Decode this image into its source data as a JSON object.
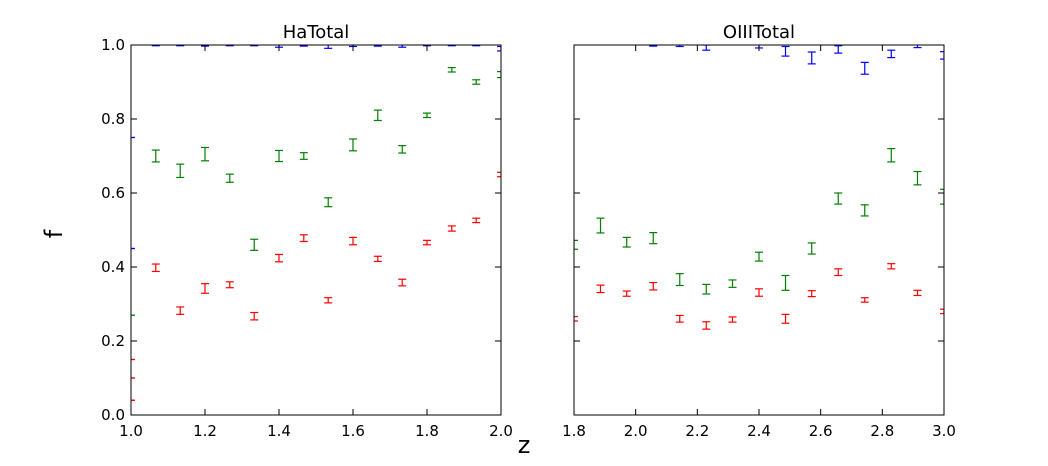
{
  "chart_data": [
    {
      "type": "scatter",
      "title": "HaTotal",
      "xlim": [
        1.0,
        2.0
      ],
      "ylim": [
        0.0,
        1.0
      ],
      "xticks": [
        "1.0",
        "1.2",
        "1.4",
        "1.6",
        "1.8",
        "2.0"
      ],
      "yticks": [
        "0.0",
        "0.2",
        "0.4",
        "0.6",
        "0.8",
        "1.0"
      ],
      "grid": false,
      "series": [
        {
          "color": "#0000ff",
          "x": [
            1.0,
            1.0,
            1.067,
            1.133,
            1.2,
            1.267,
            1.333,
            1.4,
            1.467,
            1.533,
            1.6,
            1.667,
            1.733,
            1.8,
            1.867,
            1.933,
            2.0
          ],
          "y": [
            0.75,
            0.45,
            1.0,
            1.0,
            1.0,
            1.0,
            1.0,
            0.998,
            1.0,
            0.997,
            1.0,
            1.0,
            0.998,
            1.0,
            1.0,
            1.0,
            0.99
          ],
          "err": [
            0.0,
            0.0,
            0.002,
            0.002,
            0.003,
            0.002,
            0.002,
            0.004,
            0.003,
            0.006,
            0.004,
            0.003,
            0.004,
            0.002,
            0.002,
            0.002,
            0.006
          ]
        },
        {
          "color": "#008000",
          "x": [
            1.0,
            1.067,
            1.133,
            1.2,
            1.267,
            1.333,
            1.4,
            1.467,
            1.533,
            1.6,
            1.667,
            1.733,
            1.8,
            1.867,
            1.933,
            2.0
          ],
          "y": [
            0.27,
            0.7,
            0.66,
            0.705,
            0.64,
            0.46,
            0.7,
            0.7,
            0.575,
            0.73,
            0.81,
            0.718,
            0.81,
            0.933,
            0.9,
            0.92
          ],
          "err": [
            0.0,
            0.016,
            0.018,
            0.018,
            0.011,
            0.015,
            0.015,
            0.009,
            0.012,
            0.016,
            0.014,
            0.01,
            0.006,
            0.006,
            0.006,
            0.008
          ]
        },
        {
          "color": "#ff0000",
          "x": [
            1.0,
            1.0,
            1.0,
            1.067,
            1.133,
            1.2,
            1.267,
            1.333,
            1.4,
            1.467,
            1.533,
            1.6,
            1.667,
            1.733,
            1.8,
            1.867,
            1.933,
            2.0
          ],
          "y": [
            0.15,
            0.1,
            0.04,
            0.398,
            0.282,
            0.342,
            0.352,
            0.267,
            0.424,
            0.478,
            0.31,
            0.47,
            0.422,
            0.358,
            0.466,
            0.504,
            0.526,
            0.65
          ],
          "err": [
            0.0,
            0.0,
            0.0,
            0.01,
            0.01,
            0.013,
            0.008,
            0.01,
            0.01,
            0.009,
            0.007,
            0.01,
            0.007,
            0.009,
            0.006,
            0.007,
            0.006,
            0.006
          ]
        }
      ]
    },
    {
      "type": "scatter",
      "title": "OIIITotal",
      "xlim": [
        1.8,
        3.0
      ],
      "ylim": [
        0.0,
        1.0
      ],
      "xticks": [
        "1.8",
        "2.0",
        "2.2",
        "2.4",
        "2.6",
        "2.8",
        "3.0"
      ],
      "yticks": [
        "0.0",
        "0.2",
        "0.4",
        "0.6",
        "0.8",
        "1.0"
      ],
      "grid": false,
      "series": [
        {
          "color": "#0000ff",
          "x": [
            2.057,
            2.143,
            2.229,
            2.4,
            2.486,
            2.571,
            2.657,
            2.743,
            2.829,
            2.914,
            3.0
          ],
          "y": [
            1.0,
            1.0,
            0.993,
            0.998,
            0.983,
            0.965,
            0.988,
            0.937,
            0.976,
            0.998,
            0.972
          ],
          "err": [
            0.003,
            0.004,
            0.007,
            0.006,
            0.013,
            0.016,
            0.01,
            0.016,
            0.01,
            0.005,
            0.01
          ]
        },
        {
          "color": "#008000",
          "x": [
            1.8,
            1.886,
            1.971,
            2.057,
            2.143,
            2.229,
            2.314,
            2.4,
            2.486,
            2.571,
            2.657,
            2.743,
            2.829,
            2.914,
            3.0
          ],
          "y": [
            0.46,
            0.512,
            0.467,
            0.478,
            0.366,
            0.34,
            0.355,
            0.428,
            0.357,
            0.45,
            0.585,
            0.553,
            0.702,
            0.64,
            0.59
          ],
          "err": [
            0.012,
            0.02,
            0.013,
            0.015,
            0.016,
            0.013,
            0.01,
            0.012,
            0.02,
            0.015,
            0.015,
            0.015,
            0.018,
            0.018,
            0.02
          ]
        },
        {
          "color": "#ff0000",
          "x": [
            1.8,
            1.886,
            1.971,
            2.057,
            2.143,
            2.229,
            2.314,
            2.4,
            2.486,
            2.571,
            2.657,
            2.743,
            2.829,
            2.914,
            3.0
          ],
          "y": [
            0.26,
            0.341,
            0.328,
            0.348,
            0.26,
            0.242,
            0.258,
            0.331,
            0.26,
            0.328,
            0.386,
            0.311,
            0.402,
            0.33,
            0.28
          ],
          "err": [
            0.006,
            0.01,
            0.007,
            0.01,
            0.009,
            0.01,
            0.007,
            0.01,
            0.012,
            0.008,
            0.009,
            0.006,
            0.007,
            0.007,
            0.006
          ]
        }
      ]
    }
  ],
  "shared": {
    "ylabel": "f",
    "xlabel": "z"
  }
}
